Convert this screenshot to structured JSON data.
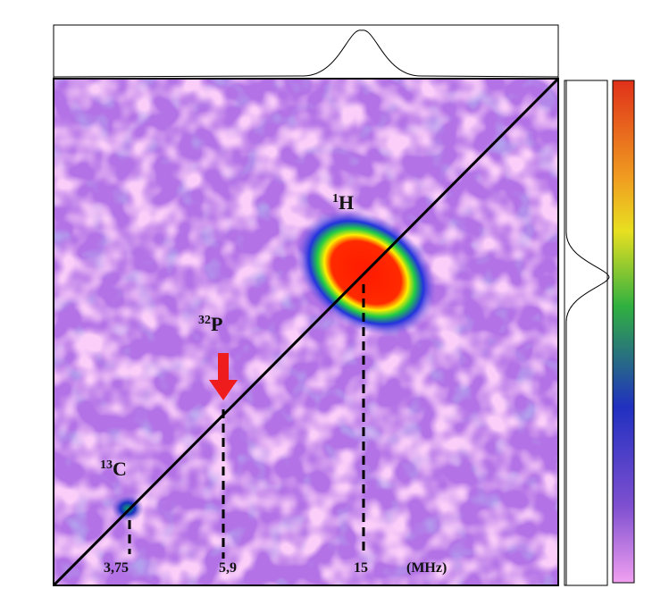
{
  "figure": {
    "peaks": [
      {
        "superscript": "13",
        "label": "C",
        "value_label": "3,75"
      },
      {
        "superscript": "32",
        "label": "P",
        "value_label": "5,9"
      },
      {
        "superscript": "1",
        "label": "H",
        "value_label": "15"
      }
    ],
    "unit": "(MHz)"
  }
}
